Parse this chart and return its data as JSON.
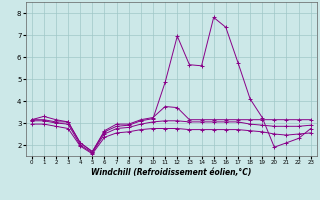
{
  "xlabel": "Windchill (Refroidissement éolien,°C)",
  "background_color": "#cce8e8",
  "grid_color": "#a0c8c8",
  "line_color": "#880088",
  "xlim": [
    -0.5,
    23.5
  ],
  "ylim": [
    1.5,
    8.5
  ],
  "xticks": [
    0,
    1,
    2,
    3,
    4,
    5,
    6,
    7,
    8,
    9,
    10,
    11,
    12,
    13,
    14,
    15,
    16,
    17,
    18,
    19,
    20,
    21,
    22,
    23
  ],
  "yticks": [
    2,
    3,
    4,
    5,
    6,
    7,
    8
  ],
  "lines": [
    {
      "x": [
        0,
        1,
        2,
        3,
        4,
        5,
        6,
        7,
        8,
        9,
        10,
        11,
        12,
        13,
        14,
        15,
        16,
        17,
        18,
        19,
        20,
        21,
        22,
        23
      ],
      "y": [
        3.15,
        3.3,
        3.15,
        3.05,
        2.1,
        1.7,
        2.65,
        2.95,
        2.95,
        3.15,
        3.25,
        3.75,
        3.7,
        3.15,
        3.15,
        3.15,
        3.15,
        3.15,
        3.15,
        3.15,
        3.15,
        3.15,
        3.15,
        3.15
      ]
    },
    {
      "x": [
        0,
        1,
        2,
        3,
        4,
        5,
        6,
        7,
        8,
        9,
        10,
        11,
        12,
        13,
        14,
        15,
        16,
        17,
        18,
        19,
        20,
        21,
        22,
        23
      ],
      "y": [
        3.15,
        3.15,
        3.05,
        3.05,
        2.1,
        1.7,
        2.6,
        2.85,
        2.9,
        3.1,
        3.2,
        4.85,
        6.95,
        5.65,
        5.6,
        7.8,
        7.35,
        5.75,
        4.1,
        3.25,
        1.9,
        2.1,
        2.3,
        2.75
      ]
    },
    {
      "x": [
        0,
        1,
        2,
        3,
        4,
        5,
        6,
        7,
        8,
        9,
        10,
        11,
        12,
        13,
        14,
        15,
        16,
        17,
        18,
        19,
        20,
        21,
        22,
        23
      ],
      "y": [
        3.1,
        3.1,
        3.0,
        2.95,
        2.0,
        1.65,
        2.5,
        2.75,
        2.8,
        2.95,
        3.05,
        3.1,
        3.1,
        3.05,
        3.05,
        3.05,
        3.05,
        3.05,
        2.95,
        2.9,
        2.85,
        2.85,
        2.85,
        2.9
      ]
    },
    {
      "x": [
        0,
        1,
        2,
        3,
        4,
        5,
        6,
        7,
        8,
        9,
        10,
        11,
        12,
        13,
        14,
        15,
        16,
        17,
        18,
        19,
        20,
        21,
        22,
        23
      ],
      "y": [
        2.95,
        2.95,
        2.85,
        2.75,
        1.95,
        1.6,
        2.35,
        2.55,
        2.6,
        2.7,
        2.75,
        2.75,
        2.75,
        2.7,
        2.7,
        2.7,
        2.7,
        2.7,
        2.65,
        2.6,
        2.5,
        2.45,
        2.5,
        2.55
      ]
    }
  ]
}
